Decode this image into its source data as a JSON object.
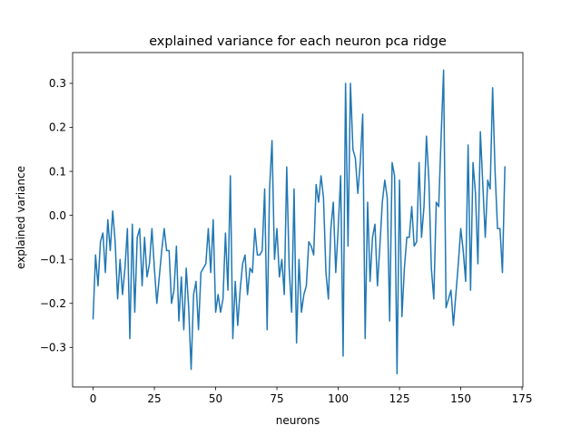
{
  "chart_data": {
    "type": "line",
    "title": "explained variance for each neuron pca ridge",
    "xlabel": "neurons",
    "ylabel": "explained variance",
    "xlim": [
      -8.35,
      175.35
    ],
    "ylim": [
      -0.39,
      0.37
    ],
    "xticks": [
      0,
      25,
      50,
      75,
      100,
      125,
      150,
      175
    ],
    "yticks": [
      -0.3,
      -0.2,
      -0.1,
      0.0,
      0.1,
      0.2,
      0.3
    ],
    "ytick_labels": [
      "−0.3",
      "−0.2",
      "−0.1",
      "0.0",
      "0.1",
      "0.2",
      "0.3"
    ],
    "xtick_labels": [
      "0",
      "25",
      "50",
      "75",
      "100",
      "125",
      "150",
      "175"
    ],
    "grid": false,
    "legend": "none",
    "color": "#1f77b4",
    "series": [
      {
        "values": [
          -0.235,
          -0.09,
          -0.16,
          -0.06,
          -0.04,
          -0.13,
          -0.01,
          -0.08,
          0.01,
          -0.06,
          -0.19,
          -0.1,
          -0.18,
          -0.12,
          -0.03,
          -0.28,
          -0.02,
          -0.22,
          -0.05,
          -0.03,
          -0.16,
          -0.05,
          -0.14,
          -0.11,
          -0.03,
          -0.12,
          -0.2,
          -0.14,
          -0.08,
          -0.03,
          -0.08,
          -0.08,
          -0.2,
          -0.17,
          -0.07,
          -0.24,
          -0.14,
          -0.26,
          -0.12,
          -0.21,
          -0.35,
          -0.18,
          -0.15,
          -0.26,
          -0.13,
          -0.12,
          -0.11,
          -0.03,
          -0.13,
          -0.01,
          -0.22,
          -0.18,
          -0.22,
          -0.19,
          -0.04,
          -0.17,
          0.09,
          -0.28,
          -0.15,
          -0.25,
          -0.17,
          -0.11,
          -0.09,
          -0.18,
          -0.12,
          -0.13,
          -0.03,
          -0.09,
          -0.09,
          -0.08,
          0.06,
          -0.26,
          0.06,
          0.17,
          -0.1,
          -0.03,
          -0.14,
          -0.1,
          -0.18,
          0.11,
          -0.12,
          -0.22,
          0.06,
          -0.29,
          -0.1,
          -0.22,
          -0.18,
          -0.16,
          -0.06,
          -0.07,
          -0.09,
          0.07,
          0.03,
          0.09,
          0.04,
          -0.13,
          -0.19,
          -0.03,
          0.03,
          -0.13,
          -0.03,
          0.09,
          -0.32,
          0.3,
          -0.07,
          0.3,
          0.15,
          0.13,
          0.05,
          0.12,
          0.23,
          -0.28,
          0.03,
          -0.15,
          -0.05,
          -0.02,
          -0.16,
          -0.07,
          0.03,
          0.08,
          0.04,
          -0.24,
          0.12,
          0.09,
          -0.36,
          0.08,
          -0.23,
          -0.12,
          -0.05,
          -0.05,
          0.02,
          -0.07,
          -0.06,
          0.12,
          -0.05,
          0.02,
          0.18,
          0.08,
          -0.12,
          -0.19,
          0.03,
          0.02,
          0.18,
          0.33,
          -0.21,
          -0.19,
          -0.17,
          -0.25,
          -0.18,
          -0.11,
          -0.03,
          -0.08,
          -0.15,
          0.16,
          -0.17,
          0.12,
          0.05,
          -0.11,
          0.19,
          0.07,
          -0.05,
          0.08,
          0.06,
          0.29,
          0.1,
          -0.03,
          -0.03,
          -0.13,
          0.11
        ]
      }
    ]
  }
}
